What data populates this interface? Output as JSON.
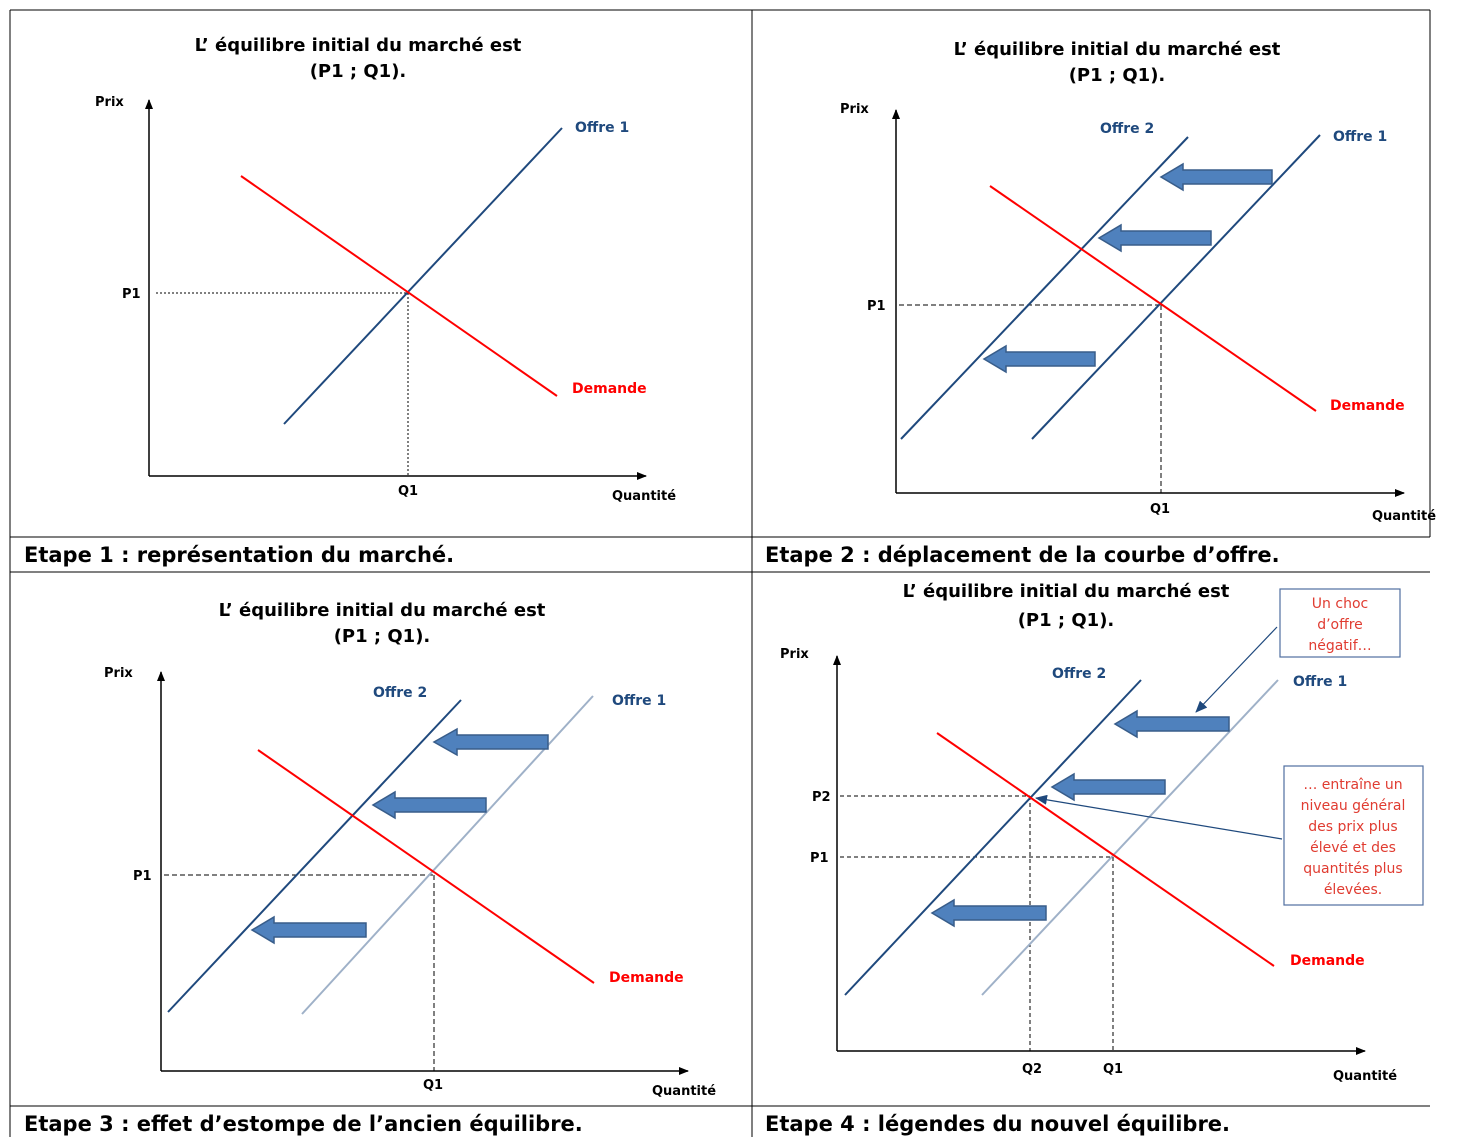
{
  "panel1": {
    "title_line1": "L’ équilibre initial du marché est",
    "title_line2": "(P1 ; Q1).",
    "y_axis": "Prix",
    "x_axis": "Quantité",
    "p1": "P1",
    "q1": "Q1",
    "offre1": "Offre 1",
    "demande": "Demande",
    "caption": "Etape 1 : représentation du marché."
  },
  "panel2": {
    "title_line1": "L’ équilibre initial du marché est",
    "title_line2": "(P1 ; Q1).",
    "y_axis": "Prix",
    "x_axis": "Quantité",
    "p1": "P1",
    "q1": "Q1",
    "offre1": "Offre 1",
    "offre2": "Offre 2",
    "demande": "Demande",
    "caption": "Etape 2 : déplacement de la courbe d’offre."
  },
  "panel3": {
    "title_line1": "L’ équilibre initial du marché est",
    "title_line2": "(P1 ; Q1).",
    "y_axis": "Prix",
    "x_axis": "Quantité",
    "p1": "P1",
    "q1": "Q1",
    "offre1": "Offre 1",
    "offre2": "Offre 2",
    "demande": "Demande",
    "caption": "Etape 3 : effet d’estompe de l’ancien équilibre."
  },
  "panel4": {
    "title_line1": "L’ équilibre initial du marché est",
    "title_line2": "(P1 ; Q1).",
    "y_axis": "Prix",
    "x_axis": "Quantité",
    "p1": "P1",
    "p2": "P2",
    "q1": "Q1",
    "q2": "Q2",
    "offre1": "Offre 1",
    "offre2": "Offre 2",
    "demande": "Demande",
    "note1": [
      "Un choc",
      "d’offre",
      "négatif…"
    ],
    "note2": [
      "… entraîne un",
      "niveau général",
      "des prix plus",
      "élevé et des",
      "quantités plus",
      "élevées."
    ],
    "caption": "Etape 4 : légendes du nouvel équilibre."
  },
  "colors": {
    "offre": "#1f497d",
    "offre_faded": "#9fb1c8",
    "demande": "#ff0000",
    "arrow_fill": "#4f81bd",
    "arrow_stroke": "#385d8a",
    "note_text": "#e03c31",
    "note_border": "#4f6fa0"
  }
}
